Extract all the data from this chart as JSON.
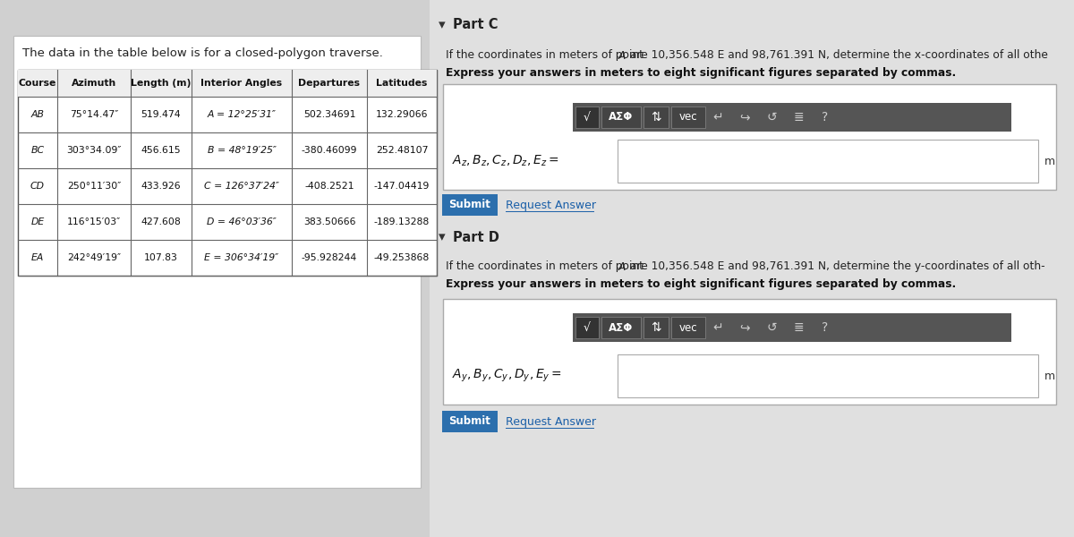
{
  "bg_color": "#d0d0d0",
  "left_panel_bg": "#e8e8e8",
  "right_panel_bg": "#e0e0e0",
  "title_text": "The data in the table below is for a closed-polygon traverse.",
  "table_headers": [
    "Course",
    "Azimuth",
    "Length (m)",
    "Interior Angles",
    "Departures",
    "Latitudes"
  ],
  "table_rows": [
    [
      "AB",
      "75°14․47″",
      "519.474",
      "A = 12°25′31″",
      "502.34691",
      "132.29066"
    ],
    [
      "BC",
      "303°34․09″",
      "456.615",
      "B = 48°19′25″",
      "-380.46099",
      "252.48107"
    ],
    [
      "CD",
      "250°11′30″",
      "433.926",
      "C = 126°37′24″",
      "-408.2521",
      "-147.04419"
    ],
    [
      "DE",
      "116°15′03″",
      "427.608",
      "D = 46°03′36″",
      "383.50666",
      "-189.13288"
    ],
    [
      "EA",
      "242°49′19″",
      "107.83",
      "E = 306°34′19″",
      "-95.928244",
      "-49.253868"
    ]
  ],
  "partC_label": "Part C",
  "partC_desc1a": "If the coordinates in meters of point ",
  "partC_desc1b": "A",
  "partC_desc1c": " are 10,356.548 E and 98,761.391 N, determine the x-coordinates of all othe",
  "partC_desc2": "Express your answers in meters to eight significant figures separated by commas.",
  "partC_input_label": "$A_z, B_z, C_z, D_z, E_z =$",
  "partC_unit": "m",
  "partD_label": "Part D",
  "partD_desc1a": "If the coordinates in meters of point ",
  "partD_desc1b": "A",
  "partD_desc1c": " are 10,356.548 E and 98,761.391 N, determine the y-coordinates of all oth-",
  "partD_desc2": "Express your answers in meters to eight significant figures separated by commas.",
  "partD_input_label": "$A_y, B_y, C_y, D_y, E_y =$",
  "partD_unit": "m",
  "submit_color": "#2c6fad",
  "toolbar_bg": "#555555",
  "toolbar_btn_dark": "#333333",
  "toolbar_btn_mid": "#444444"
}
